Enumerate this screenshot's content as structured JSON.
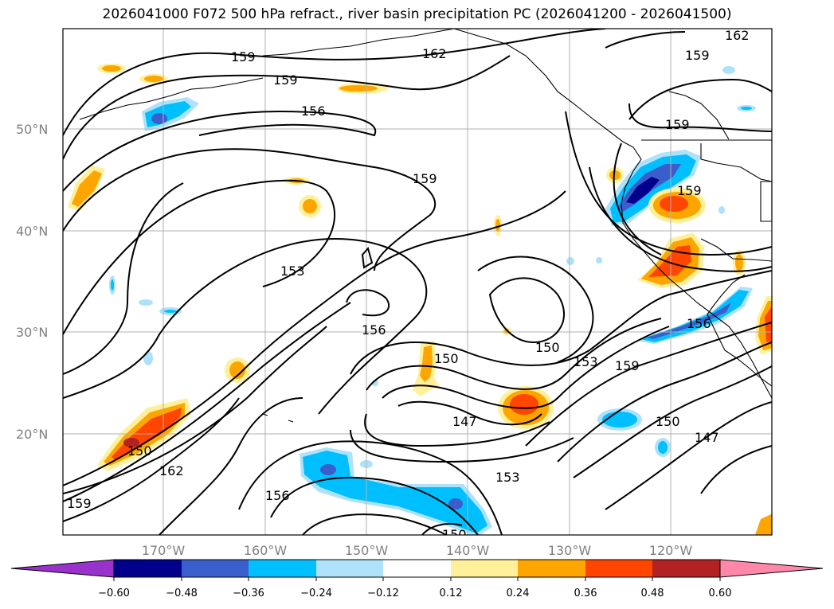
{
  "title": "2026041000 F072 500 hPa refract., river basin precipitation PC (2026041200 - 2026041500)",
  "lat_labels": [
    "50°N",
    "40°N",
    "30°N",
    "20°N"
  ],
  "lon_labels": [
    "170°W",
    "160°W",
    "150°W",
    "140°W",
    "130°W",
    "120°W"
  ],
  "contour_labels": [
    "162",
    "159",
    "159",
    "159",
    "156",
    "159",
    "159",
    "153",
    "159",
    "156",
    "150",
    "150",
    "153",
    "159",
    "147",
    "150",
    "150",
    "147",
    "162",
    "156",
    "153",
    "159",
    "156",
    "162",
    "150"
  ],
  "colorbar": {
    "colors": [
      "#9932cc",
      "#00008b",
      "#3a5fcd",
      "#00bfff",
      "#aee2fa",
      "#ffffff",
      "#fff09a",
      "#ffa500",
      "#ff4500",
      "#b22222",
      "#ff88aa"
    ],
    "tick_labels": [
      "−0.60",
      "−0.48",
      "−0.36",
      "−0.24",
      "−0.12",
      "0.12",
      "0.24",
      "0.36",
      "0.48",
      "0.60"
    ]
  }
}
